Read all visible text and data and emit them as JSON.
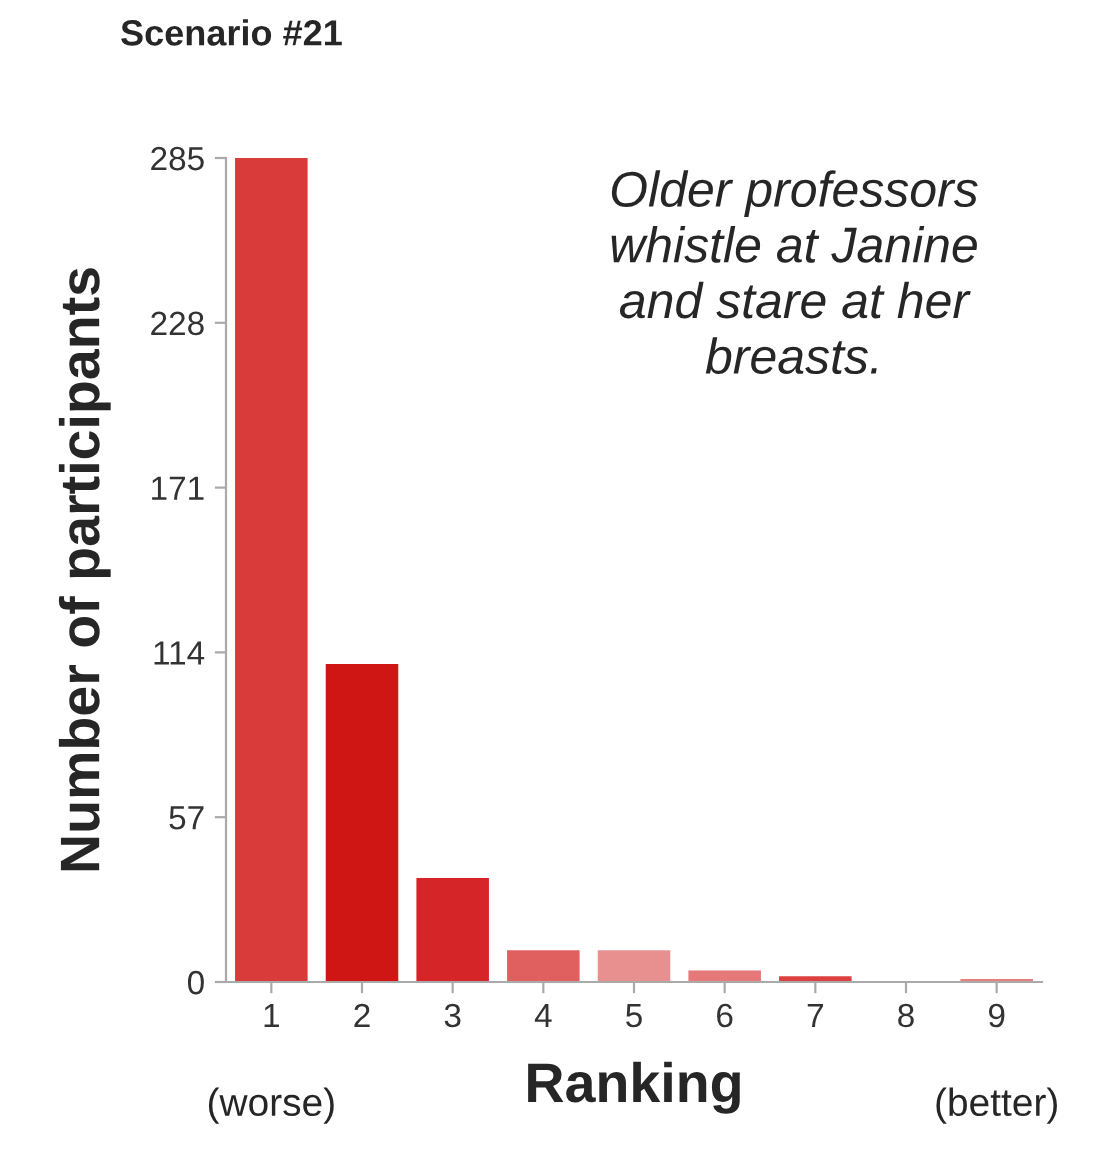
{
  "chart_data": {
    "type": "bar",
    "title": "Scenario #21",
    "xlabel": "Ranking",
    "ylabel": "Number of participants",
    "categories": [
      "1",
      "2",
      "3",
      "4",
      "5",
      "6",
      "7",
      "8",
      "9"
    ],
    "values": [
      285,
      110,
      36,
      11,
      11,
      4,
      2,
      0,
      1
    ],
    "colors": [
      "#d93a3a",
      "#d01515",
      "#d62528",
      "#e06060",
      "#e89090",
      "#e57878",
      "#dd4040",
      "#e57878",
      "#e88080"
    ],
    "ylim": [
      0,
      285
    ],
    "yticks": [
      0,
      57,
      114,
      171,
      228,
      285
    ],
    "grid": false,
    "legend": false,
    "annotations": [
      "Older professors whistle at Janine and stare at her breasts.",
      "(worse)",
      "(better)"
    ]
  }
}
